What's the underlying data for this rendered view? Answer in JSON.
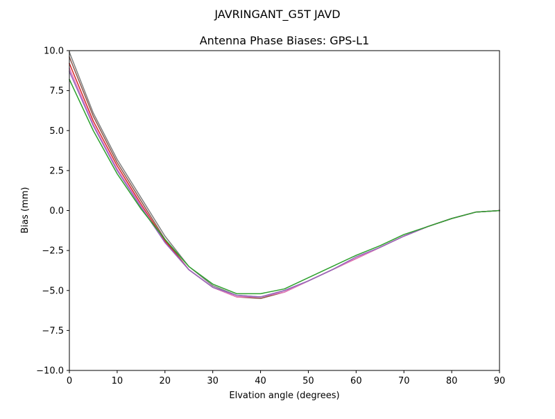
{
  "chart_data": {
    "type": "line",
    "suptitle": "JAVRINGANT_G5T  JAVD",
    "title": "Antenna Phase Biases: GPS-L1",
    "xlabel": "Elvation angle (degrees)",
    "ylabel": "Bias (mm)",
    "xlim": [
      0,
      90
    ],
    "ylim": [
      -10,
      10
    ],
    "xticks": [
      0,
      10,
      20,
      30,
      40,
      50,
      60,
      70,
      80,
      90
    ],
    "xtick_labels": [
      "0",
      "10",
      "20",
      "30",
      "40",
      "50",
      "60",
      "70",
      "80",
      "90"
    ],
    "yticks": [
      -10,
      -7.5,
      -5,
      -2.5,
      0,
      2.5,
      5,
      7.5,
      10
    ],
    "ytick_labels": [
      "−10.0",
      "−7.5",
      "−5.0",
      "−2.5",
      "0.0",
      "2.5",
      "5.0",
      "7.5",
      "10.0"
    ],
    "grid": false,
    "x": [
      0,
      5,
      10,
      15,
      20,
      25,
      30,
      35,
      40,
      45,
      50,
      55,
      60,
      65,
      70,
      75,
      80,
      85,
      90
    ],
    "series": [
      {
        "color": "#7f7f7f",
        "values": [
          9.9,
          6.1,
          3.2,
          0.8,
          -1.6,
          -3.5,
          -4.7,
          -5.3,
          -5.4,
          -5.0,
          -4.4,
          -3.7,
          -3.0,
          -2.3,
          -1.6,
          -1.0,
          -0.5,
          -0.1,
          0.0
        ]
      },
      {
        "color": "#8c564b",
        "values": [
          9.6,
          5.9,
          3.0,
          0.6,
          -1.8,
          -3.7,
          -4.8,
          -5.4,
          -5.5,
          -5.1,
          -4.4,
          -3.7,
          -3.0,
          -2.3,
          -1.6,
          -1.0,
          -0.5,
          -0.1,
          0.0
        ]
      },
      {
        "color": "#d62728",
        "values": [
          9.2,
          5.6,
          2.8,
          0.4,
          -1.9,
          -3.7,
          -4.8,
          -5.4,
          -5.4,
          -5.1,
          -4.4,
          -3.7,
          -3.0,
          -2.3,
          -1.6,
          -1.0,
          -0.5,
          -0.1,
          0.0
        ]
      },
      {
        "color": "#e377c2",
        "values": [
          8.9,
          5.4,
          2.6,
          0.3,
          -2.0,
          -3.7,
          -4.8,
          -5.4,
          -5.4,
          -5.1,
          -4.4,
          -3.7,
          -3.0,
          -2.3,
          -1.6,
          -1.0,
          -0.5,
          -0.1,
          0.0
        ]
      },
      {
        "color": "#9467bd",
        "values": [
          8.7,
          5.3,
          2.5,
          0.2,
          -2.0,
          -3.7,
          -4.8,
          -5.3,
          -5.4,
          -5.0,
          -4.4,
          -3.7,
          -2.9,
          -2.3,
          -1.6,
          -1.0,
          -0.5,
          -0.1,
          0.0
        ]
      },
      {
        "color": "#2ca02c",
        "values": [
          8.2,
          5.0,
          2.3,
          0.1,
          -1.8,
          -3.5,
          -4.6,
          -5.2,
          -5.2,
          -4.9,
          -4.2,
          -3.5,
          -2.8,
          -2.2,
          -1.5,
          -1.0,
          -0.5,
          -0.1,
          0.0
        ]
      }
    ]
  }
}
